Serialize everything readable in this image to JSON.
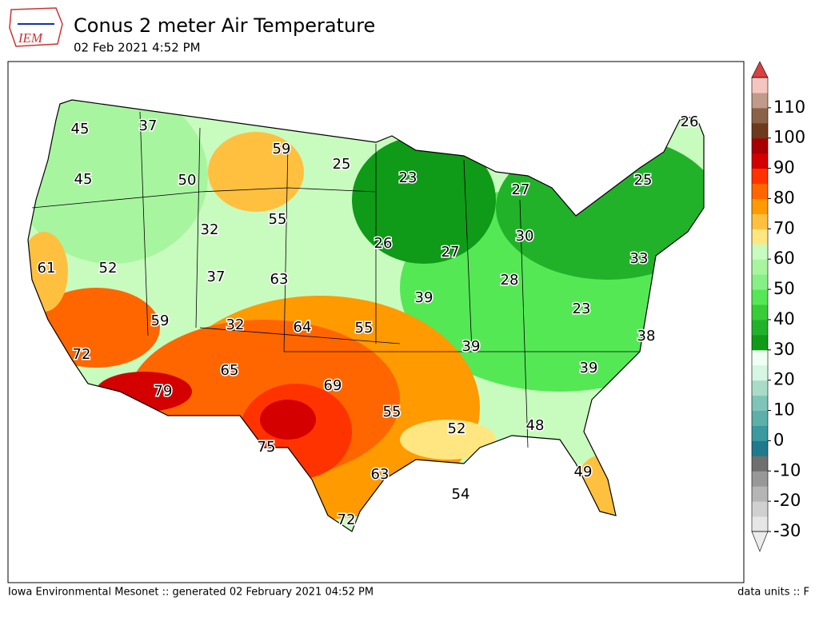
{
  "header": {
    "title": "Conus 2 meter Air Temperature",
    "subtitle": "02 Feb 2021 4:52 PM",
    "logo": "IEM"
  },
  "colorbar": {
    "lim": [
      -30,
      120
    ],
    "ticks": [
      -30,
      -20,
      -10,
      0,
      10,
      20,
      30,
      40,
      50,
      60,
      70,
      80,
      90,
      100,
      110
    ],
    "colors": [
      "#e6e6e6",
      "#d0d0d0",
      "#b5b5b5",
      "#989898",
      "#6f6f6f",
      "#1f7a8c",
      "#3a9aa0",
      "#5bb0a8",
      "#7fc4b8",
      "#a9dcc8",
      "#d6f5e3",
      "#f0fff4",
      "#0f9a18",
      "#22b22a",
      "#38cc38",
      "#55e855",
      "#86f086",
      "#a8f5a0",
      "#c8fcbe",
      "#ffe680",
      "#ffc040",
      "#ff9a00",
      "#ff6600",
      "#ff3300",
      "#d40000",
      "#a80000",
      "#6e3a1e",
      "#8a6248",
      "#c09a8a",
      "#f5c6c0"
    ],
    "over_color": "#d94040",
    "under_color": "#ececec"
  },
  "labels": [
    45,
    37,
    59,
    25,
    23,
    27,
    26,
    25,
    45,
    50,
    55,
    32,
    26,
    27,
    30,
    33,
    61,
    52,
    37,
    63,
    28,
    39,
    23,
    59,
    32,
    64,
    55,
    38,
    39,
    72,
    65,
    39,
    79,
    69,
    55,
    52,
    48,
    75,
    63,
    49,
    54,
    72
  ],
  "footer": {
    "left": "Iowa Environmental Mesonet :: generated 02 February 2021 04:52 PM",
    "right": "data units :: F"
  }
}
